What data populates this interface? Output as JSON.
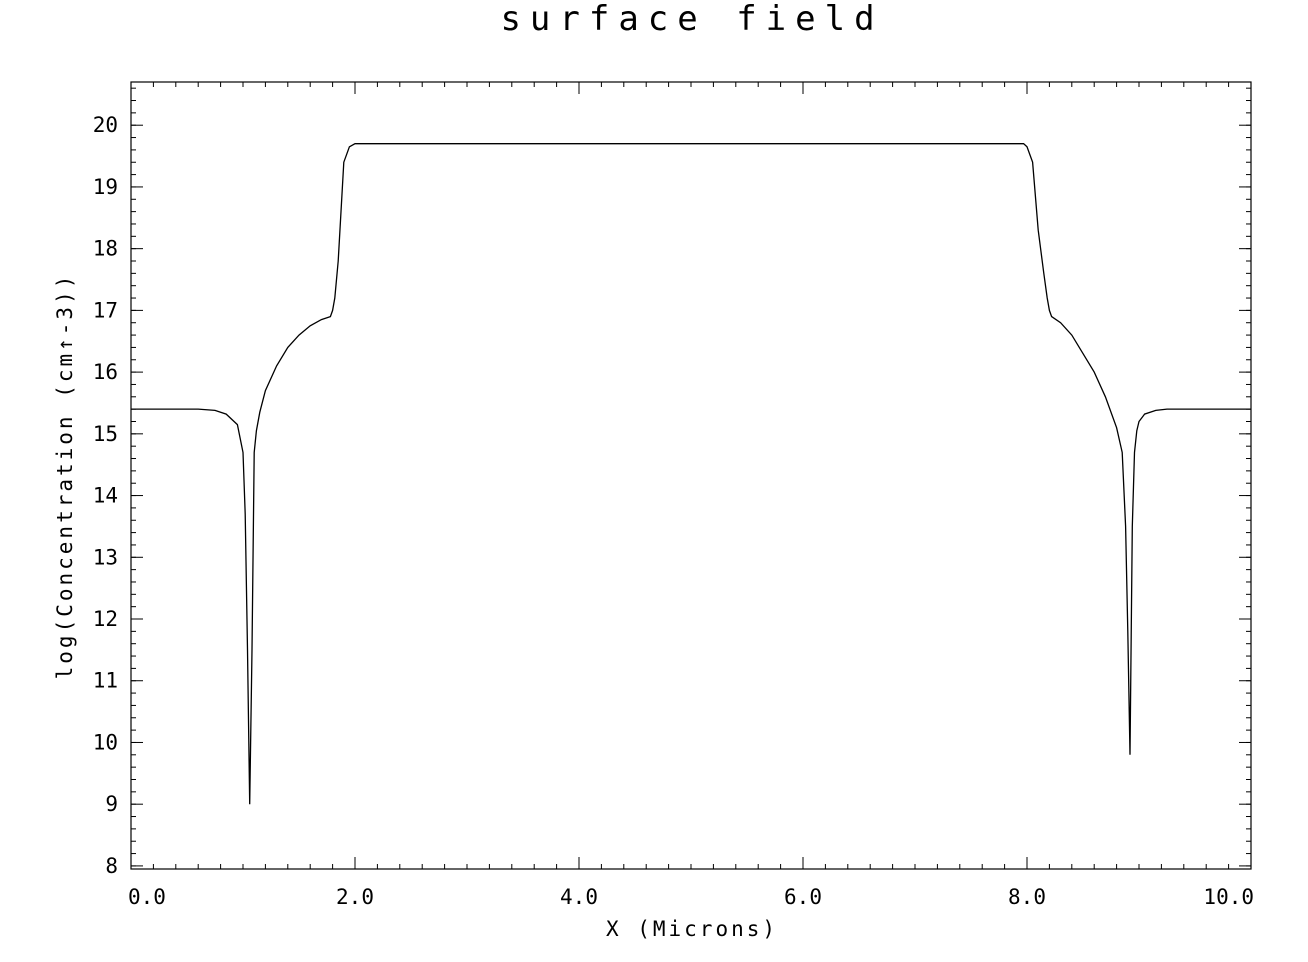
{
  "chart_data": {
    "type": "line",
    "title": "surface field",
    "xlabel": "X (Microns)",
    "ylabel": "log(Concentration (cm↑-3))",
    "xlim": [
      0,
      10
    ],
    "ylim": [
      7.95,
      20.7
    ],
    "x_ticks": [
      0,
      2,
      4,
      6,
      8,
      10
    ],
    "x_tick_labels": [
      "0.0",
      "2.0",
      "4.0",
      "6.0",
      "8.0",
      "10.0"
    ],
    "y_ticks": [
      8,
      9,
      10,
      11,
      12,
      13,
      14,
      15,
      16,
      17,
      18,
      19,
      20
    ],
    "y_tick_labels": [
      "8",
      "9",
      "10",
      "11",
      "12",
      "13",
      "14",
      "15",
      "16",
      "17",
      "18",
      "19",
      "20"
    ],
    "grid": false,
    "legend": "none",
    "series": [
      {
        "x": [
          0.0,
          0.6,
          0.75,
          0.85,
          0.95,
          1.0,
          1.02,
          1.04,
          1.06,
          1.08,
          1.1,
          1.12,
          1.15,
          1.2,
          1.3,
          1.4,
          1.5,
          1.6,
          1.7,
          1.78,
          1.8,
          1.82,
          1.85,
          1.9,
          1.95,
          2.0,
          2.05,
          3.0,
          4.0,
          5.0,
          6.0,
          7.0,
          7.97,
          8.0,
          8.05,
          8.1,
          8.15,
          8.18,
          8.2,
          8.22,
          8.3,
          8.4,
          8.5,
          8.6,
          8.7,
          8.8,
          8.85,
          8.88,
          8.9,
          8.92,
          8.94,
          8.96,
          8.98,
          9.0,
          9.05,
          9.15,
          9.25,
          9.4,
          10.0
        ],
        "y": [
          15.4,
          15.4,
          15.38,
          15.32,
          15.15,
          14.7,
          13.7,
          11.5,
          9.0,
          11.5,
          14.7,
          15.05,
          15.35,
          15.7,
          16.1,
          16.4,
          16.6,
          16.75,
          16.85,
          16.9,
          17.0,
          17.2,
          17.8,
          19.4,
          19.65,
          19.7,
          19.7,
          19.7,
          19.7,
          19.7,
          19.7,
          19.7,
          19.7,
          19.65,
          19.4,
          18.3,
          17.6,
          17.2,
          17.0,
          16.9,
          16.8,
          16.6,
          16.3,
          16.0,
          15.6,
          15.1,
          14.7,
          13.5,
          11.8,
          9.8,
          13.5,
          14.7,
          15.05,
          15.2,
          15.32,
          15.38,
          15.4,
          15.4,
          15.4
        ]
      }
    ]
  }
}
